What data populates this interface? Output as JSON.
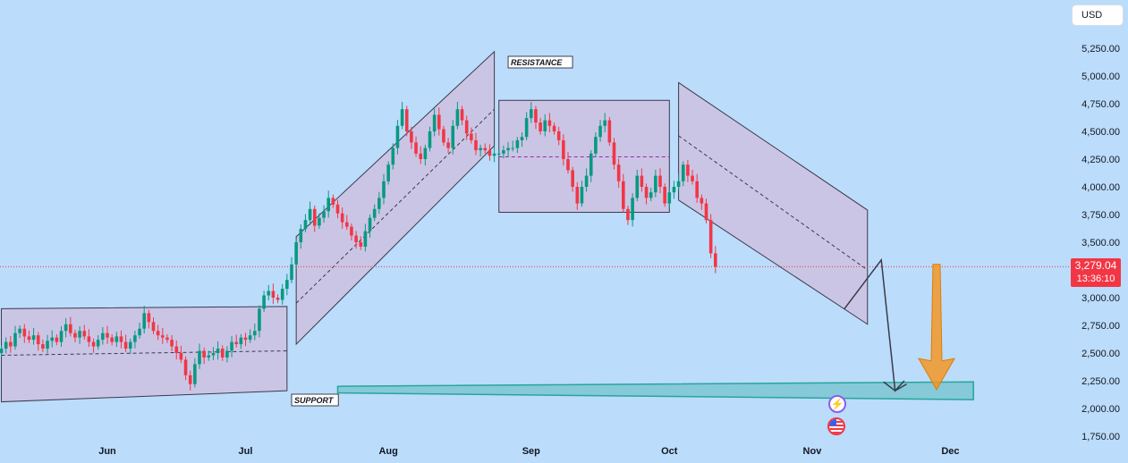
{
  "currency_button": "USD",
  "last_price": {
    "value": "3,279.04",
    "countdown": "13:36:10",
    "color": "#f23645"
  },
  "annotations": {
    "resistance": "RESISTANCE",
    "support": "SUPPORT"
  },
  "icons": {
    "events": "bolt-icon",
    "economic": "us-flag-icon"
  },
  "colors": {
    "background": "#bbdcfb",
    "up": "#089981",
    "down": "#f23645",
    "zone_fill": "#d4b8d8",
    "support_band": "#26a69a",
    "projection_arrow": "#f7931a"
  },
  "chart_data": {
    "type": "candlestick",
    "title": "",
    "x_ticks": [
      "Jun",
      "Jul",
      "Aug",
      "Sep",
      "Oct",
      "Nov",
      "Dec"
    ],
    "y_ticks": [
      "5,250.00",
      "5,000.00",
      "4,750.00",
      "4,500.00",
      "4,250.00",
      "4,000.00",
      "3,750.00",
      "3,500.00",
      "3,250.00",
      "3,000.00",
      "2,750.00",
      "2,500.00",
      "2,250.00",
      "2,000.00",
      "1,750.00"
    ],
    "ylim": [
      1750,
      5400
    ],
    "x_tick_days": [
      0,
      30,
      61,
      92,
      122,
      153,
      183
    ],
    "series": [
      {
        "values": [
          2540,
          2600,
          2560,
          2680,
          2720,
          2650,
          2620,
          2660,
          2580,
          2540,
          2610,
          2640,
          2600,
          2700,
          2760,
          2680,
          2640,
          2700,
          2650,
          2600,
          2560,
          2620,
          2680,
          2640,
          2600,
          2650,
          2600,
          2540,
          2600,
          2660,
          2720,
          2860,
          2780,
          2700,
          2660,
          2640,
          2620,
          2560,
          2500,
          2440,
          2300,
          2220,
          2400,
          2520,
          2460,
          2480,
          2500,
          2540,
          2460,
          2520,
          2600,
          2580,
          2640,
          2620,
          2660,
          2700,
          2900,
          3020,
          3060,
          3000,
          2980,
          3080,
          3160,
          3300,
          3500,
          3620,
          3700,
          3800,
          3650,
          3720,
          3780,
          3900,
          3840,
          3760,
          3680,
          3640,
          3560,
          3500,
          3460,
          3600,
          3720,
          3800,
          3900,
          4050,
          4200,
          4350,
          4550,
          4700,
          4500,
          4400,
          4300,
          4250,
          4350,
          4500,
          4650,
          4520,
          4400,
          4350,
          4550,
          4700,
          4600,
          4480,
          4420,
          4330,
          4350,
          4330,
          4280,
          4300,
          4300,
          4330,
          4350,
          4350,
          4420,
          4450,
          4620,
          4700,
          4580,
          4500,
          4600,
          4550,
          4500,
          4420,
          4250,
          4150,
          4000,
          3850,
          4000,
          4100,
          4300,
          4450,
          4550,
          4600,
          4400,
          4200,
          4050,
          3800,
          3700,
          3900,
          4100,
          4000,
          3900,
          3950,
          4100,
          4000,
          3850,
          3950,
          4000,
          4050,
          4200,
          4100,
          4050,
          3900,
          3850,
          3700,
          3400,
          3279.04
        ]
      }
    ],
    "markers": {
      "resistance_day": 87,
      "support_day": 44,
      "projection_low": 2140,
      "projection_target": 2180
    }
  }
}
